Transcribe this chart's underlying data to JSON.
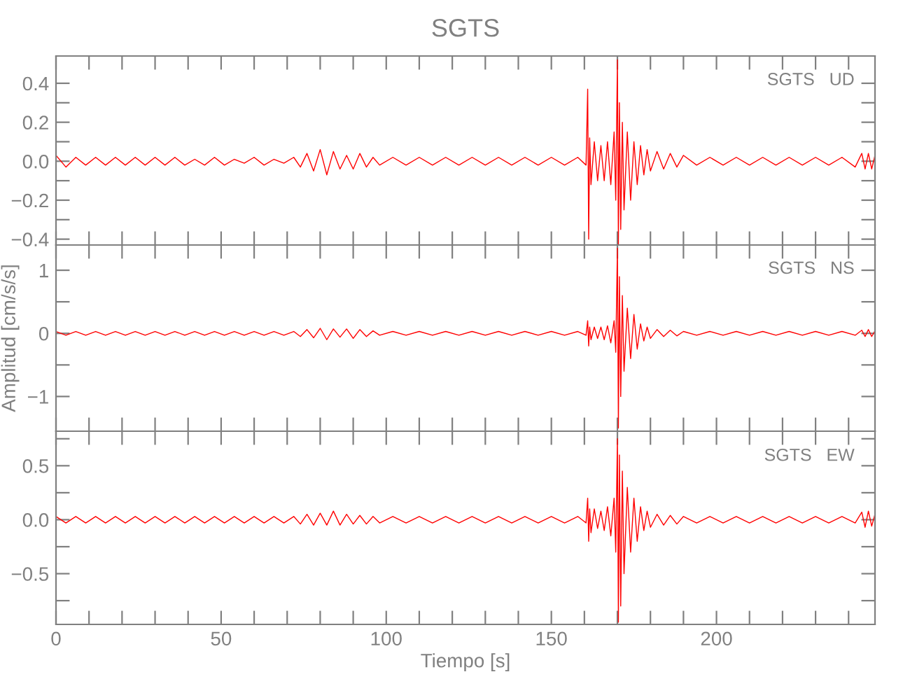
{
  "chart_data": [
    {
      "type": "line",
      "title": "SGTS",
      "annotations": [
        "SGTS   UD"
      ],
      "tick_labels": "y",
      "color": "#ff0000",
      "xlim": [
        0,
        248
      ],
      "ylim": [
        -0.43,
        0.54
      ],
      "xticks": [
        0,
        {
          "value": 10,
          "label": null
        },
        {
          "value": 20,
          "label": null
        },
        {
          "value": 30,
          "label": null
        },
        {
          "value": 40,
          "label": null
        },
        {
          "value": 50,
          "label": null
        },
        {
          "value": 60,
          "label": null
        },
        {
          "value": 70,
          "label": null
        },
        {
          "value": 80,
          "label": null
        },
        {
          "value": 90,
          "label": null
        },
        {
          "value": 100,
          "label": null
        },
        {
          "value": 110,
          "label": null
        },
        {
          "value": 120,
          "label": null
        },
        {
          "value": 130,
          "label": null
        },
        {
          "value": 140,
          "label": null
        },
        {
          "value": 150,
          "label": null
        },
        {
          "value": 160,
          "label": null
        },
        {
          "value": 170,
          "label": null
        },
        {
          "value": 180,
          "label": null
        },
        {
          "value": 190,
          "label": null
        },
        {
          "value": 200,
          "label": null
        },
        {
          "value": 210,
          "label": null
        },
        {
          "value": 220,
          "label": null
        },
        {
          "value": 230,
          "label": null
        },
        {
          "value": 240,
          "label": null
        }
      ],
      "yticks": [
        -0.4,
        {
          "value": -0.3,
          "label": null
        },
        -0.2,
        {
          "value": -0.1,
          "label": null
        },
        {
          "value": 0,
          "label": "0.0"
        },
        {
          "value": 0.1,
          "label": null
        },
        0.2,
        {
          "value": 0.3,
          "label": null
        },
        0.4
      ],
      "x": [
        0,
        3,
        6,
        9,
        12,
        15,
        18,
        21,
        24,
        27,
        30,
        33,
        36,
        39,
        42,
        45,
        48,
        51,
        54,
        57,
        60,
        63,
        66,
        69,
        72,
        74,
        76,
        78,
        80,
        82,
        84,
        86,
        88,
        90,
        92,
        94,
        96,
        98,
        102,
        106,
        110,
        114,
        118,
        122,
        126,
        130,
        134,
        138,
        142,
        146,
        150,
        154,
        158,
        160.5,
        161,
        161.3,
        161.6,
        162,
        163,
        164,
        165,
        166,
        167,
        168,
        169,
        169.5,
        170,
        170.3,
        170.6,
        171,
        171.5,
        172,
        173,
        174,
        175,
        176,
        177,
        178,
        179,
        180,
        182,
        184,
        186,
        188,
        190,
        194,
        198,
        202,
        206,
        210,
        214,
        218,
        222,
        226,
        230,
        234,
        238,
        242,
        244,
        245,
        246,
        247,
        248
      ],
      "values": [
        0.03,
        -0.03,
        0.02,
        -0.02,
        0.02,
        -0.02,
        0.02,
        -0.02,
        0.02,
        -0.02,
        0.02,
        -0.02,
        0.02,
        -0.02,
        0.01,
        -0.02,
        0.02,
        -0.02,
        0.01,
        -0.01,
        0.02,
        -0.02,
        0.01,
        -0.01,
        0.02,
        -0.03,
        0.04,
        -0.05,
        0.06,
        -0.07,
        0.05,
        -0.04,
        0.03,
        -0.04,
        0.04,
        -0.03,
        0.02,
        -0.02,
        0.02,
        -0.02,
        0.02,
        -0.02,
        0.02,
        -0.02,
        0.02,
        -0.02,
        0.02,
        -0.02,
        0.02,
        -0.02,
        0.02,
        -0.02,
        0.02,
        -0.02,
        0.37,
        -0.4,
        0.12,
        -0.12,
        0.1,
        -0.1,
        0.08,
        -0.1,
        0.1,
        -0.12,
        0.15,
        -0.2,
        0.52,
        -0.43,
        0.3,
        -0.35,
        0.2,
        -0.25,
        0.15,
        -0.2,
        0.1,
        -0.12,
        0.08,
        -0.07,
        0.06,
        -0.05,
        0.05,
        -0.04,
        0.04,
        -0.03,
        0.03,
        -0.02,
        0.02,
        -0.02,
        0.02,
        -0.02,
        0.02,
        -0.02,
        0.02,
        -0.02,
        0.02,
        -0.02,
        0.02,
        -0.03,
        0.04,
        -0.04,
        0.04,
        -0.04,
        0.03
      ]
    },
    {
      "type": "line",
      "ylabel": "Amplitud [cm/s/s]",
      "annotations": [
        "SGTS   NS"
      ],
      "tick_labels": "y",
      "color": "#ff0000",
      "xlim": [
        0,
        248
      ],
      "ylim": [
        -1.55,
        1.4
      ],
      "xticks": [
        0,
        {
          "value": 10,
          "label": null
        },
        {
          "value": 20,
          "label": null
        },
        {
          "value": 30,
          "label": null
        },
        {
          "value": 40,
          "label": null
        },
        {
          "value": 50,
          "label": null
        },
        {
          "value": 60,
          "label": null
        },
        {
          "value": 70,
          "label": null
        },
        {
          "value": 80,
          "label": null
        },
        {
          "value": 90,
          "label": null
        },
        {
          "value": 100,
          "label": null
        },
        {
          "value": 110,
          "label": null
        },
        {
          "value": 120,
          "label": null
        },
        {
          "value": 130,
          "label": null
        },
        {
          "value": 140,
          "label": null
        },
        {
          "value": 150,
          "label": null
        },
        {
          "value": 160,
          "label": null
        },
        {
          "value": 170,
          "label": null
        },
        {
          "value": 180,
          "label": null
        },
        {
          "value": 190,
          "label": null
        },
        {
          "value": 200,
          "label": null
        },
        {
          "value": 210,
          "label": null
        },
        {
          "value": 220,
          "label": null
        },
        {
          "value": 230,
          "label": null
        },
        {
          "value": 240,
          "label": null
        }
      ],
      "yticks": [
        -1,
        {
          "value": -0.5,
          "label": null
        },
        0,
        {
          "value": 0.5,
          "label": null
        },
        1
      ],
      "x": [
        0,
        3,
        6,
        9,
        12,
        15,
        18,
        21,
        24,
        27,
        30,
        33,
        36,
        39,
        42,
        45,
        48,
        51,
        54,
        57,
        60,
        63,
        66,
        69,
        72,
        74,
        76,
        78,
        80,
        82,
        84,
        86,
        88,
        90,
        92,
        94,
        96,
        98,
        102,
        106,
        110,
        114,
        118,
        122,
        126,
        130,
        134,
        138,
        142,
        146,
        150,
        154,
        158,
        160.5,
        161,
        161.3,
        161.6,
        162,
        163,
        164,
        165,
        166,
        167,
        168,
        169,
        169.5,
        170,
        170.3,
        170.6,
        171,
        171.5,
        172,
        173,
        174,
        175,
        176,
        177,
        178,
        179,
        180,
        182,
        184,
        186,
        188,
        190,
        194,
        198,
        202,
        206,
        210,
        214,
        218,
        222,
        226,
        230,
        234,
        238,
        242,
        244,
        245,
        246,
        247,
        248
      ],
      "values": [
        0.03,
        -0.03,
        0.03,
        -0.03,
        0.03,
        -0.03,
        0.03,
        -0.03,
        0.03,
        -0.03,
        0.03,
        -0.03,
        0.03,
        -0.03,
        0.03,
        -0.03,
        0.03,
        -0.03,
        0.03,
        -0.03,
        0.03,
        -0.03,
        0.03,
        -0.03,
        0.03,
        -0.05,
        0.06,
        -0.07,
        0.08,
        -0.1,
        0.07,
        -0.06,
        0.07,
        -0.08,
        0.06,
        -0.05,
        0.04,
        -0.03,
        0.03,
        -0.03,
        0.03,
        -0.03,
        0.03,
        -0.03,
        0.03,
        -0.03,
        0.03,
        -0.03,
        0.03,
        -0.03,
        0.03,
        -0.03,
        0.03,
        -0.03,
        0.2,
        -0.2,
        0.1,
        -0.1,
        0.1,
        -0.08,
        0.1,
        -0.1,
        0.12,
        -0.15,
        0.2,
        -0.3,
        1.35,
        -1.5,
        0.9,
        -1.0,
        0.6,
        -0.6,
        0.4,
        -0.4,
        0.3,
        -0.25,
        0.15,
        -0.12,
        0.1,
        -0.08,
        0.06,
        -0.05,
        0.05,
        -0.04,
        0.03,
        -0.03,
        0.03,
        -0.03,
        0.03,
        -0.03,
        0.03,
        -0.03,
        0.03,
        -0.03,
        0.03,
        -0.03,
        0.03,
        -0.03,
        0.05,
        -0.05,
        0.06,
        -0.05,
        0.04
      ]
    },
    {
      "type": "line",
      "xlabel": "Tiempo [s]",
      "annotations": [
        "SGTS   EW"
      ],
      "color": "#ff0000",
      "xlim": [
        0,
        248
      ],
      "ylim": [
        -0.97,
        0.82
      ],
      "xticks": [
        0,
        {
          "value": 10,
          "label": null
        },
        {
          "value": 20,
          "label": null
        },
        {
          "value": 30,
          "label": null
        },
        {
          "value": 40,
          "label": null
        },
        50,
        {
          "value": 60,
          "label": null
        },
        {
          "value": 70,
          "label": null
        },
        {
          "value": 80,
          "label": null
        },
        {
          "value": 90,
          "label": null
        },
        100,
        {
          "value": 110,
          "label": null
        },
        {
          "value": 120,
          "label": null
        },
        {
          "value": 130,
          "label": null
        },
        {
          "value": 140,
          "label": null
        },
        150,
        {
          "value": 160,
          "label": null
        },
        {
          "value": 170,
          "label": null
        },
        {
          "value": 180,
          "label": null
        },
        {
          "value": 190,
          "label": null
        },
        200,
        {
          "value": 210,
          "label": null
        },
        {
          "value": 220,
          "label": null
        },
        {
          "value": 230,
          "label": null
        },
        {
          "value": 240,
          "label": null
        }
      ],
      "yticks": [
        {
          "value": -0.75,
          "label": null
        },
        -0.5,
        {
          "value": -0.25,
          "label": null
        },
        {
          "value": 0,
          "label": "0.0"
        },
        {
          "value": 0.25,
          "label": null
        },
        0.5,
        {
          "value": 0.75,
          "label": null
        }
      ],
      "x": [
        0,
        3,
        6,
        9,
        12,
        15,
        18,
        21,
        24,
        27,
        30,
        33,
        36,
        39,
        42,
        45,
        48,
        51,
        54,
        57,
        60,
        63,
        66,
        69,
        72,
        74,
        76,
        78,
        80,
        82,
        84,
        86,
        88,
        90,
        92,
        94,
        96,
        98,
        102,
        106,
        110,
        114,
        118,
        122,
        126,
        130,
        134,
        138,
        142,
        146,
        150,
        154,
        158,
        160.5,
        161,
        161.3,
        161.6,
        162,
        163,
        164,
        165,
        166,
        167,
        168,
        169,
        169.5,
        170,
        170.3,
        170.6,
        171,
        171.5,
        172,
        173,
        174,
        175,
        176,
        177,
        178,
        179,
        180,
        182,
        184,
        186,
        188,
        190,
        194,
        198,
        202,
        206,
        210,
        214,
        218,
        222,
        226,
        230,
        234,
        238,
        242,
        244,
        245,
        246,
        247,
        248
      ],
      "values": [
        0.03,
        -0.03,
        0.03,
        -0.03,
        0.03,
        -0.03,
        0.03,
        -0.03,
        0.03,
        -0.03,
        0.03,
        -0.03,
        0.03,
        -0.03,
        0.03,
        -0.03,
        0.03,
        -0.03,
        0.03,
        -0.03,
        0.03,
        -0.03,
        0.03,
        -0.03,
        0.03,
        -0.04,
        0.05,
        -0.05,
        0.06,
        -0.05,
        0.08,
        -0.05,
        0.05,
        -0.04,
        0.04,
        -0.04,
        0.03,
        -0.03,
        0.03,
        -0.03,
        0.03,
        -0.03,
        0.03,
        -0.03,
        0.03,
        -0.03,
        0.03,
        -0.03,
        0.03,
        -0.03,
        0.03,
        -0.03,
        0.03,
        -0.03,
        0.2,
        -0.2,
        0.1,
        -0.12,
        0.1,
        -0.08,
        0.08,
        -0.1,
        0.12,
        -0.15,
        0.2,
        -0.3,
        0.75,
        -0.95,
        0.6,
        -0.8,
        0.45,
        -0.5,
        0.3,
        -0.3,
        0.2,
        -0.2,
        0.12,
        -0.1,
        0.08,
        -0.07,
        0.05,
        -0.05,
        0.04,
        -0.04,
        0.03,
        -0.03,
        0.03,
        -0.03,
        0.03,
        -0.03,
        0.03,
        -0.03,
        0.03,
        -0.03,
        0.03,
        -0.03,
        0.03,
        -0.03,
        0.07,
        -0.07,
        0.08,
        -0.06,
        0.05
      ]
    }
  ]
}
